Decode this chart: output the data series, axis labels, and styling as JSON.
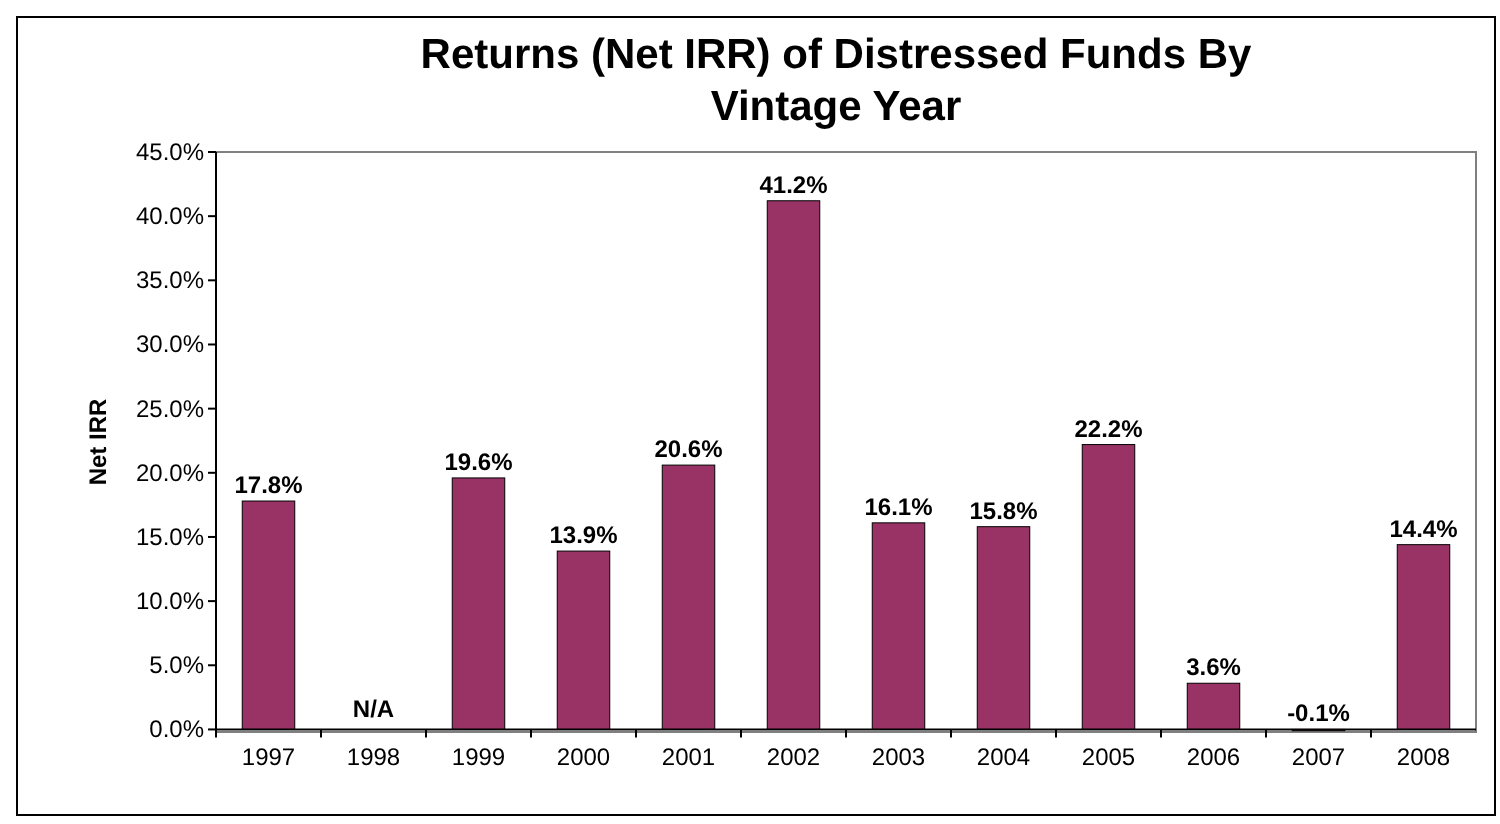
{
  "chart_data": {
    "type": "bar",
    "title": "Returns (Net IRR) of Distressed Funds By Vintage Year",
    "ylabel": "Net IRR",
    "categories": [
      "1997",
      "1998",
      "1999",
      "2000",
      "2001",
      "2002",
      "2003",
      "2004",
      "2005",
      "2006",
      "2007",
      "2008"
    ],
    "values": [
      17.8,
      null,
      19.6,
      13.9,
      20.6,
      41.2,
      16.1,
      15.8,
      22.2,
      3.6,
      -0.1,
      14.4
    ],
    "value_labels": [
      "17.8%",
      "N/A",
      "19.6%",
      "13.9%",
      "20.6%",
      "41.2%",
      "16.1%",
      "15.8%",
      "22.2%",
      "3.6%",
      "-0.1%",
      "14.4%"
    ],
    "color": "#993366",
    "ylim": [
      -0.2,
      45
    ],
    "yticks": [
      {
        "value": 0,
        "label": "0.0%"
      },
      {
        "value": 5,
        "label": "5.0%"
      },
      {
        "value": 10,
        "label": "10.0%"
      },
      {
        "value": 15,
        "label": "15.0%"
      },
      {
        "value": 20,
        "label": "20.0%"
      },
      {
        "value": 25,
        "label": "25.0%"
      },
      {
        "value": 30,
        "label": "30.0%"
      },
      {
        "value": 35,
        "label": "35.0%"
      },
      {
        "value": 40,
        "label": "40.0%"
      },
      {
        "value": 45,
        "label": "45.0%"
      }
    ],
    "grid": false
  }
}
